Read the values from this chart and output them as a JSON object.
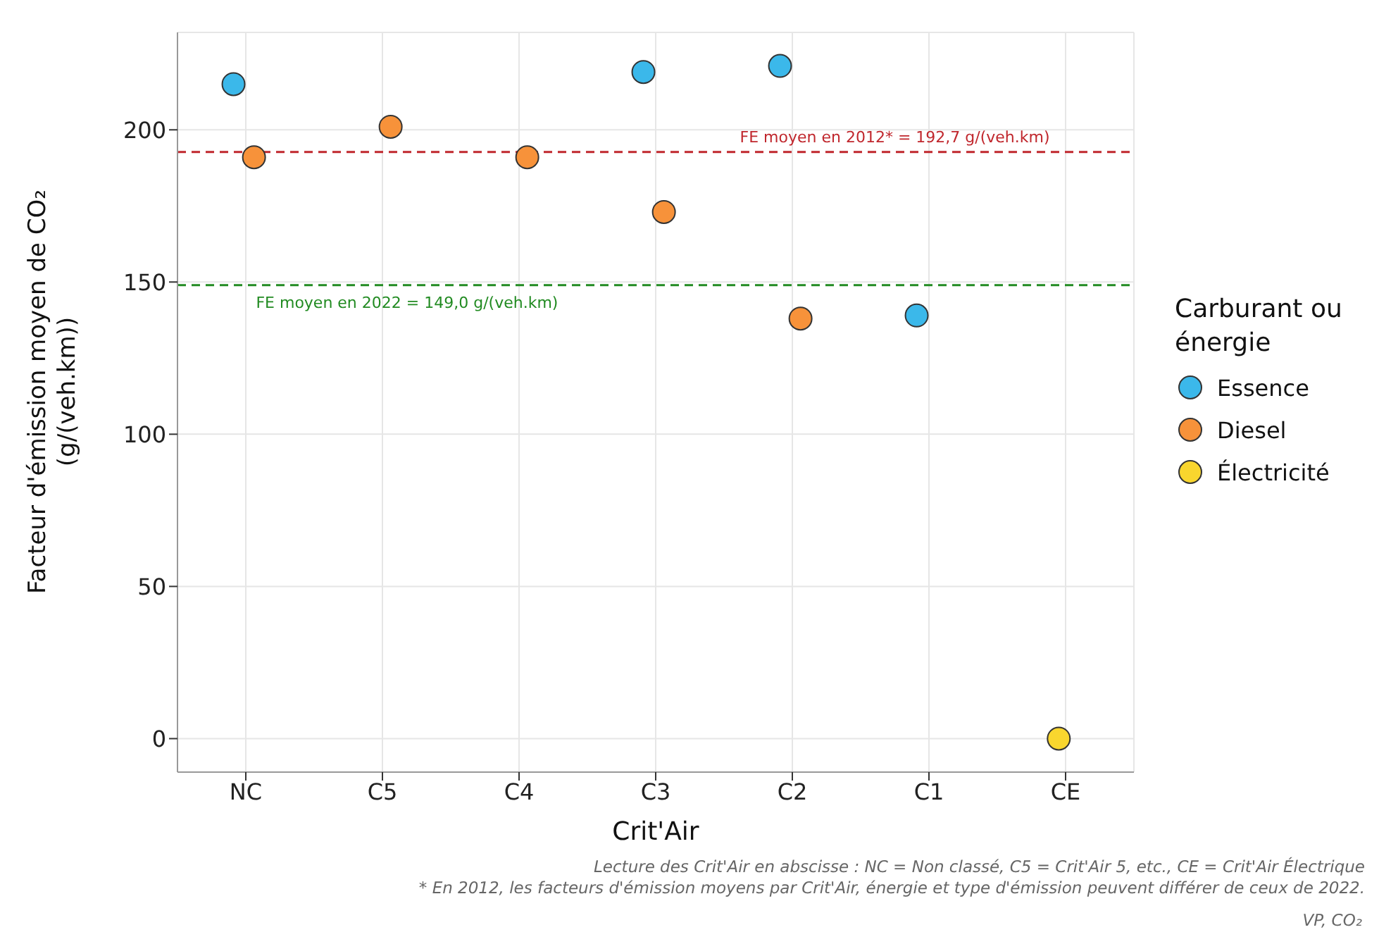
{
  "chart_data": {
    "type": "scatter",
    "xlabel": "Crit'Air",
    "ylabel": "Facteur d'émission moyen de CO₂ (g/(veh.km))",
    "legend_title": "Carburant ou énergie",
    "categories": [
      "NC",
      "C5",
      "C4",
      "C3",
      "C2",
      "C1",
      "CE"
    ],
    "series": [
      {
        "name": "Essence",
        "color": "#3bb8ea",
        "x": [
          "NC",
          "C3",
          "C2",
          "C1"
        ],
        "values": [
          215,
          219,
          221,
          139
        ]
      },
      {
        "name": "Diesel",
        "color": "#f7923a",
        "x": [
          "NC",
          "C5",
          "C4",
          "C3",
          "C2"
        ],
        "values": [
          191,
          201,
          191,
          173,
          138
        ]
      },
      {
        "name": "Électricité",
        "color": "#f9d62e",
        "x": [
          "CE"
        ],
        "values": [
          0
        ]
      }
    ],
    "ylim": [
      -11,
      232
    ],
    "yticks": [
      0,
      50,
      100,
      150,
      200
    ],
    "grid": true,
    "legend": "right",
    "marker": "circle",
    "ref_lines": [
      {
        "axis": "y",
        "value": 192.7,
        "label": "FE moyen en 2012* = 192,7 g/(veh.km)",
        "color": "#c0272d",
        "line_style": "dashed"
      },
      {
        "axis": "y",
        "value": 149.0,
        "label": "FE moyen en 2022 = 149,0 g/(veh.km)",
        "color": "#228b22",
        "line_style": "dashed"
      }
    ],
    "annotations": [
      "Lecture des Crit'Air en abscisse : NC = Non classé, C5 = Crit'Air 5, etc., CE = Crit'Air Électrique",
      "* En 2012, les facteurs d'émission moyens par Crit'Air, énergie et type d'émission peuvent différer de ceux de 2022.",
      "VP, CO₂"
    ]
  }
}
